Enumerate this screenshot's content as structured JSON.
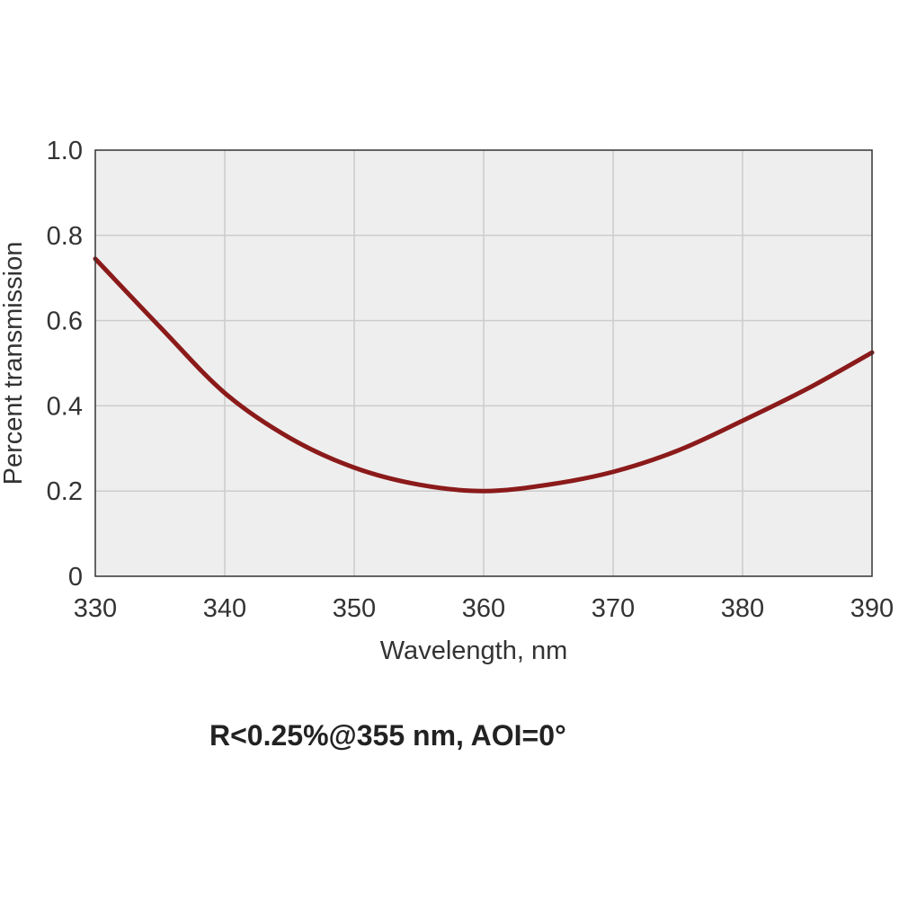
{
  "chart_data": {
    "type": "line",
    "xlabel": "Wavelength, nm",
    "ylabel": "Percent  transmission",
    "xlim": [
      330,
      390
    ],
    "ylim": [
      0,
      1.0
    ],
    "x_ticks": [
      330,
      340,
      350,
      360,
      370,
      380,
      390
    ],
    "x_tick_labels": [
      "330",
      "340",
      "350",
      "360",
      "370",
      "380",
      "390"
    ],
    "y_ticks": [
      0,
      0.2,
      0.4,
      0.6,
      0.8,
      1.0
    ],
    "y_tick_labels": [
      "0",
      "0.2",
      "0.4",
      "0.6",
      "0.8",
      "1.0"
    ],
    "grid": true,
    "series": [
      {
        "color": "#8b1a1a",
        "x": [
          330,
          335,
          340,
          345,
          350,
          355,
          360,
          365,
          370,
          375,
          380,
          385,
          390
        ],
        "y": [
          0.745,
          0.585,
          0.43,
          0.325,
          0.255,
          0.215,
          0.2,
          0.215,
          0.245,
          0.295,
          0.365,
          0.44,
          0.525
        ]
      }
    ],
    "colors": {
      "plot_background": "#eeeeee",
      "grid": "#cccccc",
      "frame": "#333333",
      "line": "#8b1a1a"
    }
  },
  "caption": "R<0.25%@355 nm, AOI=0°"
}
